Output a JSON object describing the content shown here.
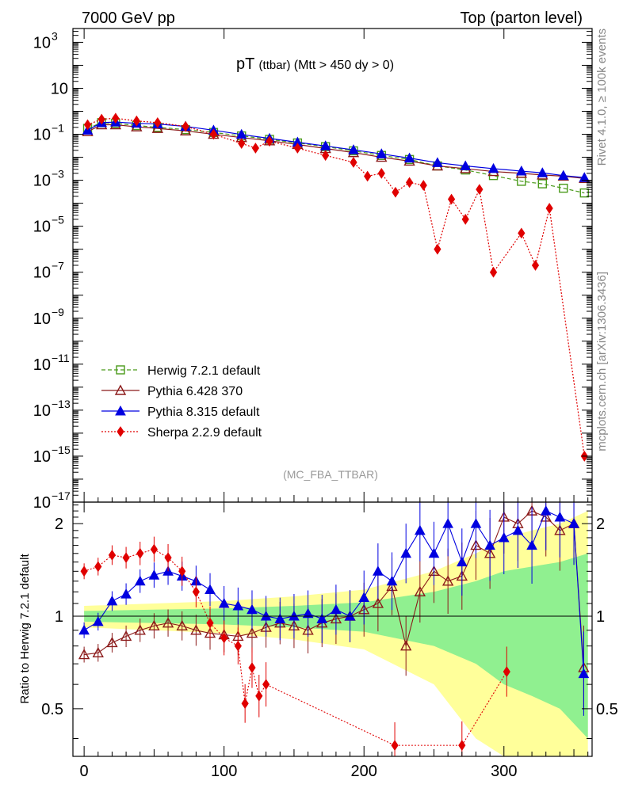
{
  "header": {
    "left_label": "7000 GeV pp",
    "right_label": "Top (parton level)"
  },
  "chart_data": [
    {
      "type": "line",
      "title": "pT",
      "title_sub": "(ttbar)",
      "title_cut": "(Mtt > 450 dy > 0)",
      "ylabel": "",
      "yscale": "log",
      "yticks": [
        {
          "value": 1000,
          "label": "10",
          "sup": "3"
        },
        {
          "value": 10,
          "label": "10",
          "sup": ""
        },
        {
          "value": 0.1,
          "label": "10",
          "sup": "−1"
        },
        {
          "value": 0.001,
          "label": "10",
          "sup": "−3"
        },
        {
          "value": 1e-05,
          "label": "10",
          "sup": "−5"
        },
        {
          "value": 1e-07,
          "label": "10",
          "sup": "−7"
        },
        {
          "value": 1e-09,
          "label": "10",
          "sup": "−9"
        },
        {
          "value": 1e-11,
          "label": "10",
          "sup": "−11"
        },
        {
          "value": 1e-13,
          "label": "10",
          "sup": "−13"
        },
        {
          "value": 1e-15,
          "label": "10",
          "sup": "−15"
        },
        {
          "value": 1e-17,
          "label": "10",
          "sup": "−17"
        }
      ],
      "ylim_log10": [
        -17,
        3.6
      ],
      "xlim": [
        -8,
        363
      ],
      "analysis_label": "(MC_FBA_TTBAR)",
      "side_label_top": "Rivet 4.1.0, ≥ 100k events",
      "side_label_bottom": "mcplots.cern.ch [arXiv:1306.3436]",
      "legend_position": "lower-left",
      "series": [
        {
          "name": "Herwig 7.2.1 default",
          "color": "#4a9a1a",
          "marker": "open-square",
          "linestyle": "dashed",
          "x": [
            2.5,
            12.5,
            22.5,
            37.5,
            52.5,
            72.5,
            92.5,
            112.5,
            132.5,
            152.5,
            172.5,
            192.5,
            212.5,
            232.5,
            252.5,
            272.5,
            292.5,
            312.5,
            327.5,
            342.5,
            357.5
          ],
          "values": [
            0.18,
            0.32,
            0.3,
            0.24,
            0.2,
            0.16,
            0.12,
            0.085,
            0.06,
            0.042,
            0.029,
            0.019,
            0.012,
            0.008,
            0.0042,
            0.0028,
            0.0016,
            0.0009,
            0.0007,
            0.00045,
            0.00028
          ]
        },
        {
          "name": "Pythia 6.428 370",
          "color": "#8b1a1a",
          "marker": "open-triangle",
          "linestyle": "solid",
          "x": [
            2.5,
            12.5,
            22.5,
            37.5,
            52.5,
            72.5,
            92.5,
            112.5,
            132.5,
            152.5,
            172.5,
            192.5,
            212.5,
            232.5,
            252.5,
            272.5,
            292.5,
            312.5,
            327.5,
            342.5,
            357.5
          ],
          "values": [
            0.13,
            0.26,
            0.26,
            0.21,
            0.18,
            0.14,
            0.1,
            0.072,
            0.052,
            0.036,
            0.024,
            0.016,
            0.01,
            0.0068,
            0.0042,
            0.0032,
            0.0024,
            0.002,
            0.0017,
            0.0015,
            0.0012
          ]
        },
        {
          "name": "Pythia 8.315 default",
          "color": "#0000e0",
          "marker": "filled-triangle",
          "linestyle": "solid",
          "x": [
            2.5,
            12.5,
            22.5,
            37.5,
            52.5,
            72.5,
            92.5,
            112.5,
            132.5,
            152.5,
            172.5,
            192.5,
            212.5,
            232.5,
            252.5,
            272.5,
            292.5,
            312.5,
            327.5,
            342.5,
            357.5
          ],
          "values": [
            0.15,
            0.32,
            0.34,
            0.3,
            0.28,
            0.22,
            0.15,
            0.098,
            0.066,
            0.045,
            0.031,
            0.021,
            0.014,
            0.0092,
            0.0058,
            0.0042,
            0.0032,
            0.0025,
            0.0021,
            0.0016,
            0.0013
          ]
        },
        {
          "name": "Sherpa 2.2.9 default",
          "color": "#e00000",
          "marker": "filled-diamond",
          "linestyle": "dotted",
          "x": [
            2.5,
            12.5,
            22.5,
            37.5,
            52.5,
            72.5,
            92.5,
            112.5,
            122.5,
            132.5,
            152.5,
            172.5,
            192.5,
            202.5,
            212.5,
            222.5,
            232.5,
            242.5,
            252.5,
            262.5,
            272.5,
            282.5,
            292.5,
            312.5,
            322.5,
            332.5,
            357.5
          ],
          "values": [
            0.26,
            0.45,
            0.5,
            0.38,
            0.32,
            0.22,
            0.1,
            0.04,
            0.025,
            0.05,
            0.025,
            0.012,
            0.006,
            0.0015,
            0.002,
            0.0003,
            0.0008,
            0.0006,
            1e-06,
            0.00015,
            2e-05,
            0.0004,
            1e-07,
            5e-06,
            2e-07,
            6e-05,
            1e-15
          ]
        }
      ]
    },
    {
      "type": "line",
      "title": "",
      "xlabel": "",
      "ylabel": "Ratio to Herwig 7.2.1 default",
      "ylim": [
        0.35,
        2.35
      ],
      "yticks": [
        0.5,
        1,
        2
      ],
      "xticks": [
        0,
        100,
        200,
        300
      ],
      "xlim": [
        -8,
        363
      ],
      "reference_line": 1,
      "bands": [
        {
          "name": "Herwig stat band (inner)",
          "color": "#90f090",
          "x": [
            0,
            50,
            100,
            150,
            200,
            250,
            280,
            300,
            320,
            340,
            360
          ],
          "half_width": [
            0.04,
            0.05,
            0.06,
            0.08,
            0.11,
            0.2,
            0.3,
            0.4,
            0.45,
            0.5,
            0.6
          ]
        },
        {
          "name": "Herwig stat band (outer)",
          "color": "#ffff9a",
          "x": [
            0,
            50,
            100,
            150,
            200,
            250,
            280,
            300,
            320,
            340,
            360
          ],
          "half_width": [
            0.08,
            0.1,
            0.12,
            0.16,
            0.22,
            0.4,
            0.6,
            0.8,
            0.9,
            1.0,
            1.2
          ]
        }
      ],
      "series": [
        {
          "name": "Pythia 6.428 370",
          "color": "#8b1a1a",
          "marker": "open-triangle",
          "x": [
            0,
            10,
            20,
            30,
            40,
            50,
            60,
            70,
            80,
            90,
            100,
            110,
            120,
            130,
            140,
            150,
            160,
            170,
            180,
            190,
            200,
            210,
            220,
            230,
            240,
            250,
            260,
            270,
            280,
            290,
            300,
            310,
            320,
            330,
            340,
            350,
            357
          ],
          "values": [
            0.75,
            0.76,
            0.82,
            0.86,
            0.9,
            0.93,
            0.95,
            0.93,
            0.9,
            0.88,
            0.87,
            0.86,
            0.88,
            0.92,
            0.95,
            0.93,
            0.9,
            0.95,
            0.98,
            1.0,
            1.05,
            1.1,
            1.25,
            0.8,
            1.2,
            1.4,
            1.3,
            1.35,
            1.7,
            1.6,
            2.1,
            2.0,
            2.2,
            2.1,
            1.9,
            2.0,
            0.68
          ]
        },
        {
          "name": "Pythia 8.315 default",
          "color": "#0000e0",
          "marker": "filled-triangle",
          "x": [
            0,
            10,
            20,
            30,
            40,
            50,
            60,
            70,
            80,
            90,
            100,
            110,
            120,
            130,
            140,
            150,
            160,
            170,
            180,
            190,
            200,
            210,
            220,
            230,
            240,
            250,
            260,
            270,
            280,
            290,
            300,
            310,
            320,
            330,
            340,
            350,
            357
          ],
          "values": [
            0.9,
            0.96,
            1.12,
            1.18,
            1.3,
            1.36,
            1.4,
            1.35,
            1.3,
            1.22,
            1.1,
            1.08,
            1.05,
            1.0,
            0.98,
            1.0,
            1.02,
            0.98,
            1.05,
            1.0,
            1.15,
            1.4,
            1.3,
            1.6,
            1.9,
            1.6,
            2.0,
            1.5,
            2.0,
            1.7,
            1.8,
            1.9,
            1.7,
            2.2,
            2.1,
            2.0,
            0.65
          ]
        },
        {
          "name": "Sherpa 2.2.9 default",
          "color": "#e00000",
          "marker": "filled-diamond",
          "x": [
            0,
            10,
            20,
            30,
            40,
            50,
            60,
            70,
            80,
            90,
            100,
            110,
            115,
            120,
            125,
            130,
            222,
            270,
            302
          ],
          "values": [
            1.4,
            1.45,
            1.58,
            1.55,
            1.6,
            1.65,
            1.55,
            1.4,
            1.2,
            0.95,
            0.85,
            0.8,
            0.52,
            0.68,
            0.55,
            0.6,
            0.38,
            0.38,
            0.66
          ]
        }
      ]
    }
  ]
}
